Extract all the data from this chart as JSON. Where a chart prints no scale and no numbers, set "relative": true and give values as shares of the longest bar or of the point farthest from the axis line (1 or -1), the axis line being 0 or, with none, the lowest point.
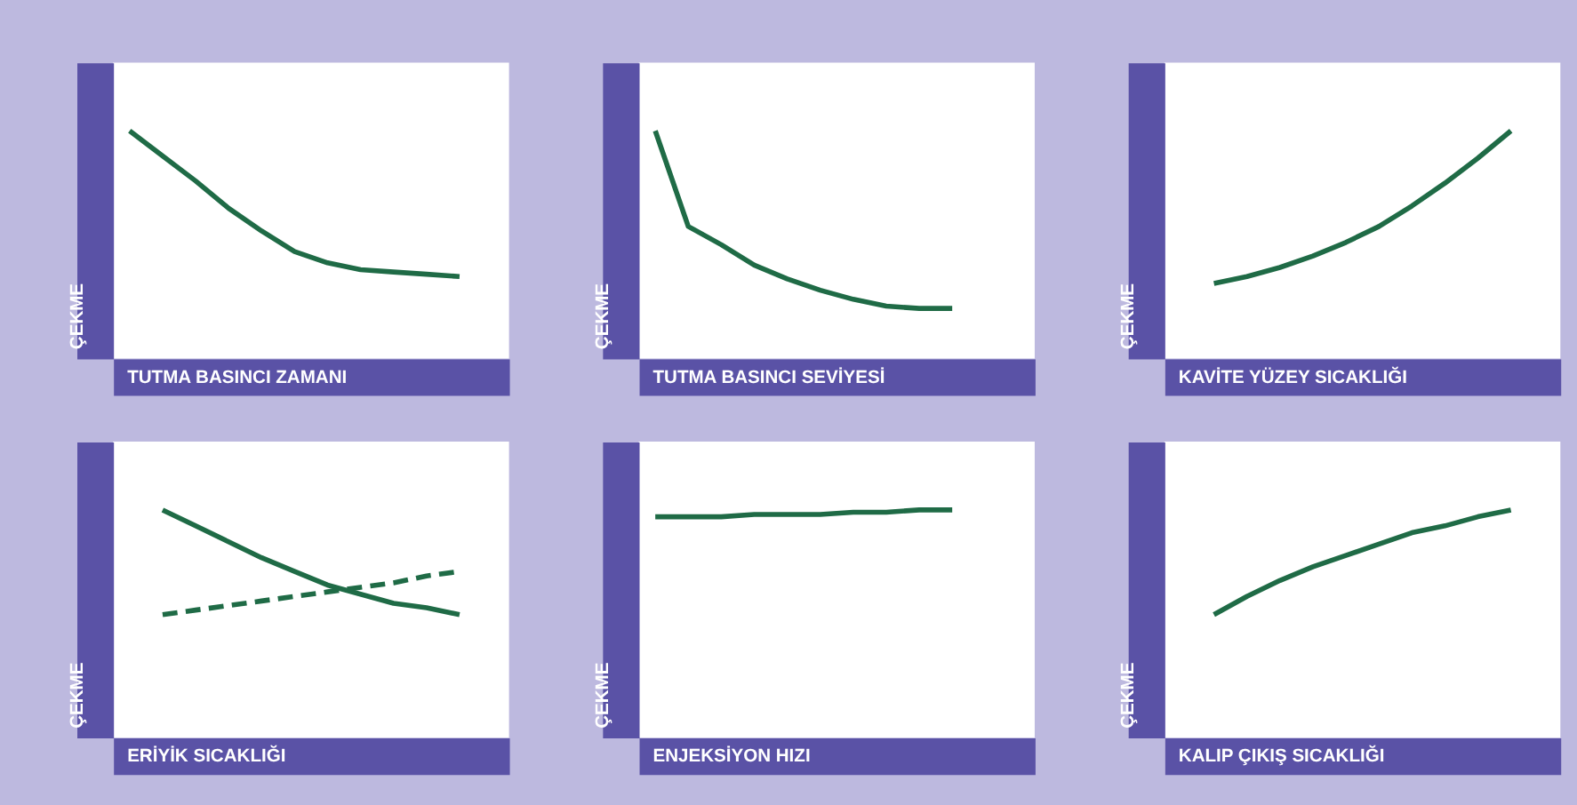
{
  "chart_data": [
    {
      "type": "line",
      "relative": true,
      "xlabel": "TUTMA BASINCI ZAMANI",
      "ylabel": "ÇEKME",
      "categories": [
        null,
        null,
        null,
        null,
        null,
        null,
        null,
        null,
        null,
        null,
        null,
        null
      ],
      "tick_labels": false,
      "series": [
        {
          "color": "#1f6b46",
          "values": [
            1,
            0.89,
            0.78,
            0.66,
            0.56,
            0.47,
            0.42,
            0.39,
            0.38,
            0.37,
            0.36,
            null
          ]
        }
      ]
    },
    {
      "type": "line",
      "relative": true,
      "xlabel": "TUTMA BASINCI SEVİYESİ",
      "ylabel": "ÇEKME",
      "categories": [
        null,
        null,
        null,
        null,
        null,
        null,
        null,
        null,
        null,
        null,
        null,
        null
      ],
      "tick_labels": false,
      "series": [
        {
          "color": "#1f6b46",
          "values": [
            1,
            0.58,
            0.5,
            0.41,
            0.35,
            0.3,
            0.26,
            0.23,
            0.22,
            0.22,
            null,
            null
          ]
        }
      ]
    },
    {
      "type": "line",
      "relative": true,
      "xlabel": "KAVİTE YÜZEY SICAKLIĞI",
      "ylabel": "ÇEKME",
      "categories": [
        null,
        null,
        null,
        null,
        null,
        null,
        null,
        null,
        null,
        null,
        null,
        null
      ],
      "tick_labels": false,
      "series": [
        {
          "color": "#1f6b46",
          "values": [
            null,
            0.33,
            0.36,
            0.4,
            0.45,
            0.51,
            0.58,
            0.67,
            0.77,
            0.88,
            1,
            null
          ]
        }
      ]
    },
    {
      "type": "line",
      "relative": true,
      "xlabel": "ERİYİK SICAKLIĞI",
      "ylabel": "ÇEKME",
      "categories": [
        null,
        null,
        null,
        null,
        null,
        null,
        null,
        null,
        null,
        null,
        null,
        null
      ],
      "tick_labels": false,
      "series": [
        {
          "color": "#1f6b46",
          "values": [
            null,
            1,
            0.93,
            0.86,
            0.79,
            0.73,
            0.67,
            0.63,
            0.59,
            0.57,
            0.54,
            null
          ]
        },
        {
          "color": "#1f6b46",
          "line_style": "dashed",
          "values": [
            null,
            0.54,
            0.56,
            0.58,
            0.6,
            0.62,
            0.64,
            0.66,
            0.68,
            0.71,
            0.73,
            null
          ]
        }
      ]
    },
    {
      "type": "line",
      "relative": true,
      "xlabel": "ENJEKSİYON HIZI",
      "ylabel": "ÇEKME",
      "categories": [
        null,
        null,
        null,
        null,
        null,
        null,
        null,
        null,
        null,
        null,
        null,
        null
      ],
      "tick_labels": false,
      "series": [
        {
          "color": "#1f6b46",
          "values": [
            0.97,
            0.97,
            0.97,
            0.98,
            0.98,
            0.98,
            0.99,
            0.99,
            1,
            1,
            null,
            null
          ]
        }
      ]
    },
    {
      "type": "line",
      "relative": true,
      "xlabel": "KALIP ÇIKIŞ SICAKLIĞI",
      "ylabel": "ÇEKME",
      "categories": [
        null,
        null,
        null,
        null,
        null,
        null,
        null,
        null,
        null,
        null,
        null,
        null
      ],
      "tick_labels": false,
      "series": [
        {
          "color": "#1f6b46",
          "values": [
            null,
            0.54,
            0.62,
            0.69,
            0.75,
            0.8,
            0.85,
            0.9,
            0.93,
            0.97,
            1,
            null
          ]
        }
      ]
    }
  ]
}
